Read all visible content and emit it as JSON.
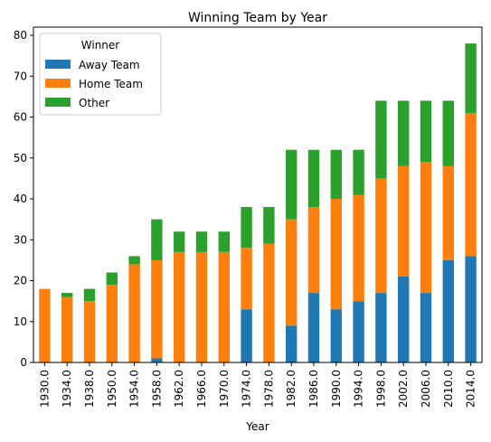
{
  "chart_data": {
    "type": "bar",
    "stacked": true,
    "title": "Winning Team by Year",
    "xlabel": "Year",
    "ylabel": "",
    "ylim": [
      0,
      82
    ],
    "yticks": [
      0,
      10,
      20,
      30,
      40,
      50,
      60,
      70,
      80
    ],
    "grid": false,
    "legend": {
      "title": "Winner",
      "placement": "top-left"
    },
    "categories": [
      "1930.0",
      "1934.0",
      "1938.0",
      "1950.0",
      "1954.0",
      "1958.0",
      "1962.0",
      "1966.0",
      "1970.0",
      "1974.0",
      "1978.0",
      "1982.0",
      "1986.0",
      "1990.0",
      "1994.0",
      "1998.0",
      "2002.0",
      "2006.0",
      "2010.0",
      "2014.0"
    ],
    "series": [
      {
        "name": "Away Team",
        "color": "#1f77b4",
        "values": [
          0,
          0,
          0,
          0,
          0,
          1,
          0,
          0,
          0,
          13,
          0,
          9,
          17,
          13,
          15,
          17,
          21,
          17,
          25,
          26
        ]
      },
      {
        "name": "Home Team",
        "color": "#ff7f0e",
        "values": [
          18,
          16,
          15,
          19,
          24,
          24,
          27,
          27,
          27,
          15,
          29,
          26,
          21,
          27,
          26,
          28,
          27,
          32,
          23,
          35
        ]
      },
      {
        "name": "Other",
        "color": "#2ca02c",
        "values": [
          0,
          1,
          3,
          3,
          2,
          10,
          5,
          5,
          5,
          10,
          9,
          17,
          14,
          12,
          11,
          19,
          16,
          15,
          16,
          17
        ]
      }
    ]
  }
}
